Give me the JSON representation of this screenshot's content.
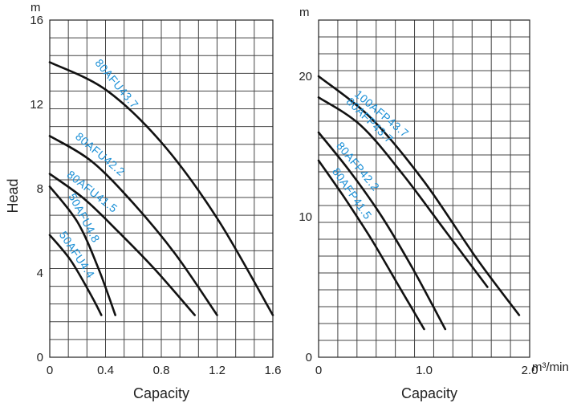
{
  "chart_data": [
    {
      "type": "line",
      "title": "",
      "xlabel": "Capacity",
      "ylabel": "Head",
      "y_unit": "m",
      "xlim": [
        0,
        1.6
      ],
      "ylim": [
        0,
        16
      ],
      "x_ticks": [
        "0",
        "0.4",
        "0.8",
        "1.2",
        "1.6"
      ],
      "y_ticks": [
        "0",
        "4",
        "8",
        "12",
        "16"
      ],
      "grid": true,
      "label_color": "#1a8fd6",
      "series": [
        {
          "name": "80AFU43.7",
          "x": [
            0,
            0.4,
            0.8,
            1.2,
            1.6
          ],
          "y": [
            14,
            12.7,
            10.2,
            6.6,
            2
          ]
        },
        {
          "name": "80AFU42.2",
          "x": [
            0,
            0.3,
            0.6,
            0.9,
            1.2
          ],
          "y": [
            10.5,
            9.3,
            7.3,
            4.9,
            2
          ]
        },
        {
          "name": "80AFU41.5",
          "x": [
            0,
            0.25,
            0.5,
            0.75,
            1.04
          ],
          "y": [
            8.7,
            7.5,
            5.9,
            4.2,
            2
          ]
        },
        {
          "name": "50AFU4.8",
          "x": [
            0,
            0.2,
            0.35,
            0.47
          ],
          "y": [
            8.1,
            6.4,
            4.2,
            2
          ]
        },
        {
          "name": "50AFU4.4",
          "x": [
            0,
            0.15,
            0.3,
            0.37
          ],
          "y": [
            5.8,
            4.6,
            2.9,
            2
          ]
        }
      ]
    },
    {
      "type": "line",
      "title": "",
      "xlabel": "Capacity",
      "ylabel": "",
      "y_unit": "m",
      "x_unit": "m³/min",
      "xlim": [
        0,
        2.0
      ],
      "ylim": [
        0,
        24
      ],
      "x_ticks": [
        "0",
        "1.0",
        "2.0"
      ],
      "y_ticks": [
        "0",
        "10",
        "20"
      ],
      "grid": true,
      "label_color": "#1a8fd6",
      "series": [
        {
          "name": "100AFP43.7",
          "x": [
            0,
            0.5,
            1.0,
            1.5,
            1.9
          ],
          "y": [
            20,
            17,
            12.5,
            7,
            3
          ]
        },
        {
          "name": "80AFP43.7",
          "x": [
            0,
            0.4,
            0.8,
            1.2,
            1.6
          ],
          "y": [
            18.5,
            16.5,
            13,
            9,
            5
          ]
        },
        {
          "name": "80AFP42.2",
          "x": [
            0,
            0.3,
            0.6,
            0.9,
            1.2
          ],
          "y": [
            16,
            13.2,
            10,
            6.2,
            2
          ]
        },
        {
          "name": "80AFP41.5",
          "x": [
            0,
            0.25,
            0.5,
            0.75,
            1.0
          ],
          "y": [
            14,
            11.3,
            8.4,
            5.2,
            2
          ]
        }
      ]
    }
  ]
}
